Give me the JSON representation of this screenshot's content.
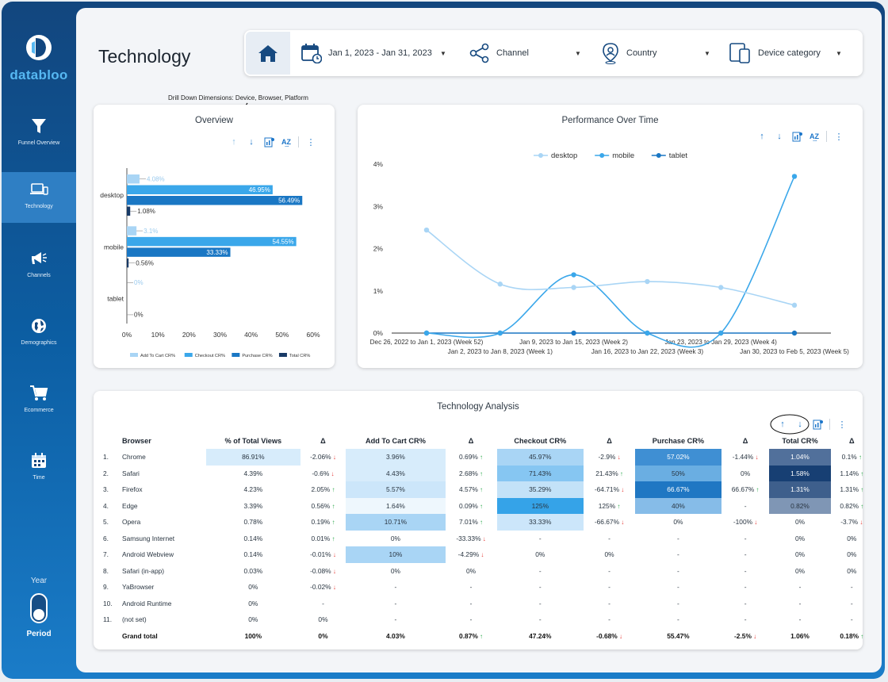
{
  "brand": {
    "name": "databloo"
  },
  "sidebar": {
    "items": [
      {
        "label": "Funnel Overview",
        "icon": "funnel-icon"
      },
      {
        "label": "Technology",
        "icon": "devices-icon"
      },
      {
        "label": "Channels",
        "icon": "megaphone-icon"
      },
      {
        "label": "Demographics",
        "icon": "globe-icon"
      },
      {
        "label": "Ecommerce",
        "icon": "cart-icon"
      },
      {
        "label": "Time",
        "icon": "calendar-icon"
      }
    ],
    "active": "Technology",
    "year_label": "Year",
    "period_label": "Period"
  },
  "page": {
    "title": "Technology"
  },
  "filters": {
    "date_range": "Jan 1, 2023 - Jan 31, 2023",
    "channel": "Channel",
    "country": "Country",
    "device": "Device category"
  },
  "annotation": "Drill Down Dimensions: Device, Browser, Platform",
  "overview": {
    "title": "Overview"
  },
  "performance": {
    "title": "Performance Over Time"
  },
  "analysis": {
    "title": "Technology Analysis"
  },
  "colors": {
    "light": "#a9d5f5",
    "mid": "#3aa7ea",
    "dark": "#1a77c4",
    "navy": "#183a66"
  },
  "chart_data": [
    {
      "type": "bar",
      "orientation": "horizontal",
      "title": "Overview",
      "categories": [
        "desktop",
        "mobile",
        "tablet"
      ],
      "series": [
        {
          "name": "Add To Cart CR%",
          "values": [
            4.08,
            3.1,
            0
          ],
          "labels": [
            "4.08%",
            "3.1%",
            "0%"
          ]
        },
        {
          "name": "Checkout CR%",
          "values": [
            46.95,
            54.55,
            0
          ],
          "labels": [
            "46.95%",
            "54.55%",
            ""
          ]
        },
        {
          "name": "Purchase CR%",
          "values": [
            56.49,
            33.33,
            0
          ],
          "labels": [
            "56.49%",
            "33.33%",
            ""
          ]
        },
        {
          "name": "Total CR%",
          "values": [
            1.08,
            0.56,
            0
          ],
          "labels": [
            "1.08%",
            "0.56%",
            "0%"
          ]
        }
      ],
      "xlim": [
        0,
        60
      ],
      "xticks": [
        "0%",
        "10%",
        "20%",
        "30%",
        "40%",
        "50%",
        "60%"
      ],
      "legend": "bottom"
    },
    {
      "type": "line",
      "title": "Performance Over Time",
      "categories": [
        "Dec 26, 2022 to Jan 1, 2023 (Week 52)",
        "Jan 2, 2023 to Jan 8, 2023 (Week 1)",
        "Jan 9, 2023 to Jan 15, 2023 (Week 2)",
        "Jan 16, 2023 to Jan 22, 2023 (Week 3)",
        "Jan 23, 2023 to Jan 29, 2023 (Week 4)",
        "Jan 30, 2023 to Feb 5, 2023 (Week 5)"
      ],
      "series": [
        {
          "name": "desktop",
          "values": [
            2.44,
            1.16,
            1.08,
            1.22,
            1.08,
            0.66
          ]
        },
        {
          "name": "mobile",
          "values": [
            0,
            0,
            1.38,
            0,
            0,
            3.71
          ]
        },
        {
          "name": "tablet",
          "values": [
            0,
            0,
            0,
            0,
            0,
            0
          ]
        }
      ],
      "ylim": [
        0,
        4
      ],
      "yticks": [
        "0%",
        "1%",
        "2%",
        "3%",
        "4%"
      ],
      "legend": "top"
    }
  ],
  "table": {
    "headers": [
      "Browser",
      "% of Total Views",
      "Δ",
      "Add To Cart CR%",
      "Δ",
      "Checkout CR%",
      "Δ",
      "Purchase CR%",
      "Δ",
      "Total CR%",
      "Δ"
    ],
    "rows": [
      {
        "n": "1.",
        "browser": "Chrome",
        "views": "86.91%",
        "d1": "-2.06%",
        "d1dir": "down",
        "atc": "3.96%",
        "d2": "0.69%",
        "d2dir": "up",
        "chk": "45.97%",
        "d3": "-2.9%",
        "d3dir": "down",
        "pur": "57.02%",
        "d4": "-1.44%",
        "d4dir": "down",
        "tot": "1.04%",
        "d5": "0.1%",
        "d5dir": "up"
      },
      {
        "n": "2.",
        "browser": "Safari",
        "views": "4.39%",
        "d1": "-0.6%",
        "d1dir": "down",
        "atc": "4.43%",
        "d2": "2.68%",
        "d2dir": "up",
        "chk": "71.43%",
        "d3": "21.43%",
        "d3dir": "up",
        "pur": "50%",
        "d4": "0%",
        "d4dir": "",
        "tot": "1.58%",
        "d5": "1.14%",
        "d5dir": "up"
      },
      {
        "n": "3.",
        "browser": "Firefox",
        "views": "4.23%",
        "d1": "2.05%",
        "d1dir": "up",
        "atc": "5.57%",
        "d2": "4.57%",
        "d2dir": "up",
        "chk": "35.29%",
        "d3": "-64.71%",
        "d3dir": "down",
        "pur": "66.67%",
        "d4": "66.67%",
        "d4dir": "up",
        "tot": "1.31%",
        "d5": "1.31%",
        "d5dir": "up"
      },
      {
        "n": "4.",
        "browser": "Edge",
        "views": "3.39%",
        "d1": "0.56%",
        "d1dir": "up",
        "atc": "1.64%",
        "d2": "0.09%",
        "d2dir": "up",
        "chk": "125%",
        "d3": "125%",
        "d3dir": "up",
        "pur": "40%",
        "d4": "-",
        "d4dir": "",
        "tot": "0.82%",
        "d5": "0.82%",
        "d5dir": "up"
      },
      {
        "n": "5.",
        "browser": "Opera",
        "views": "0.78%",
        "d1": "0.19%",
        "d1dir": "up",
        "atc": "10.71%",
        "d2": "7.01%",
        "d2dir": "up",
        "chk": "33.33%",
        "d3": "-66.67%",
        "d3dir": "down",
        "pur": "0%",
        "d4": "-100%",
        "d4dir": "down",
        "tot": "0%",
        "d5": "-3.7%",
        "d5dir": "down"
      },
      {
        "n": "6.",
        "browser": "Samsung Internet",
        "views": "0.14%",
        "d1": "0.01%",
        "d1dir": "up",
        "atc": "0%",
        "d2": "-33.33%",
        "d2dir": "down",
        "chk": "-",
        "d3": "-",
        "d3dir": "",
        "pur": "-",
        "d4": "-",
        "d4dir": "",
        "tot": "0%",
        "d5": "0%",
        "d5dir": ""
      },
      {
        "n": "7.",
        "browser": "Android Webview",
        "views": "0.14%",
        "d1": "-0.01%",
        "d1dir": "down",
        "atc": "10%",
        "d2": "-4.29%",
        "d2dir": "down",
        "chk": "0%",
        "d3": "0%",
        "d3dir": "",
        "pur": "-",
        "d4": "-",
        "d4dir": "",
        "tot": "0%",
        "d5": "0%",
        "d5dir": ""
      },
      {
        "n": "8.",
        "browser": "Safari (in-app)",
        "views": "0.03%",
        "d1": "-0.08%",
        "d1dir": "down",
        "atc": "0%",
        "d2": "0%",
        "d2dir": "",
        "chk": "-",
        "d3": "-",
        "d3dir": "",
        "pur": "-",
        "d4": "-",
        "d4dir": "",
        "tot": "0%",
        "d5": "0%",
        "d5dir": ""
      },
      {
        "n": "9.",
        "browser": "YaBrowser",
        "views": "0%",
        "d1": "-0.02%",
        "d1dir": "down",
        "atc": "-",
        "d2": "-",
        "d2dir": "",
        "chk": "-",
        "d3": "-",
        "d3dir": "",
        "pur": "-",
        "d4": "-",
        "d4dir": "",
        "tot": "-",
        "d5": "-",
        "d5dir": ""
      },
      {
        "n": "10.",
        "browser": "Android Runtime",
        "views": "0%",
        "d1": "-",
        "d1dir": "",
        "atc": "-",
        "d2": "-",
        "d2dir": "",
        "chk": "-",
        "d3": "-",
        "d3dir": "",
        "pur": "-",
        "d4": "-",
        "d4dir": "",
        "tot": "-",
        "d5": "-",
        "d5dir": ""
      },
      {
        "n": "11.",
        "browser": "(not set)",
        "views": "0%",
        "d1": "0%",
        "d1dir": "",
        "atc": "-",
        "d2": "-",
        "d2dir": "",
        "chk": "-",
        "d3": "-",
        "d3dir": "",
        "pur": "-",
        "d4": "-",
        "d4dir": "",
        "tot": "-",
        "d5": "-",
        "d5dir": ""
      }
    ],
    "total": {
      "label": "Grand total",
      "views": "100%",
      "d1": "0%",
      "atc": "4.03%",
      "d2": "0.87%",
      "d2dir": "up",
      "chk": "47.24%",
      "d3": "-0.68%",
      "d3dir": "down",
      "pur": "55.47%",
      "d4": "-2.5%",
      "d4dir": "down",
      "tot": "1.06%",
      "d5": "0.18%",
      "d5dir": "up"
    },
    "heat": {
      "views": [
        "#d7ecfb",
        "",
        "",
        "",
        "",
        "",
        "",
        "",
        "",
        "",
        ""
      ],
      "atc": [
        "#d7ecfb",
        "#d7ecfb",
        "#cce6fa",
        "#eef7fd",
        "#a9d5f5",
        "",
        "#a9d5f5",
        "",
        "",
        "",
        ""
      ],
      "chk": [
        "#a9d5f5",
        "#86c6f2",
        "#c3e2f8",
        "#35a3e8",
        "#cce6fa",
        "",
        "",
        "",
        "",
        "",
        ""
      ],
      "pur": [
        "#3f8fd3",
        "#6aaee2",
        "#1f77c3",
        "#86bce8",
        "",
        "",
        "",
        "",
        "",
        "",
        ""
      ],
      "tot": [
        "#51709b",
        "#173f73",
        "#3e5f8c",
        "#7f96b5",
        "",
        "",
        "",
        "",
        "",
        "",
        ""
      ]
    }
  }
}
